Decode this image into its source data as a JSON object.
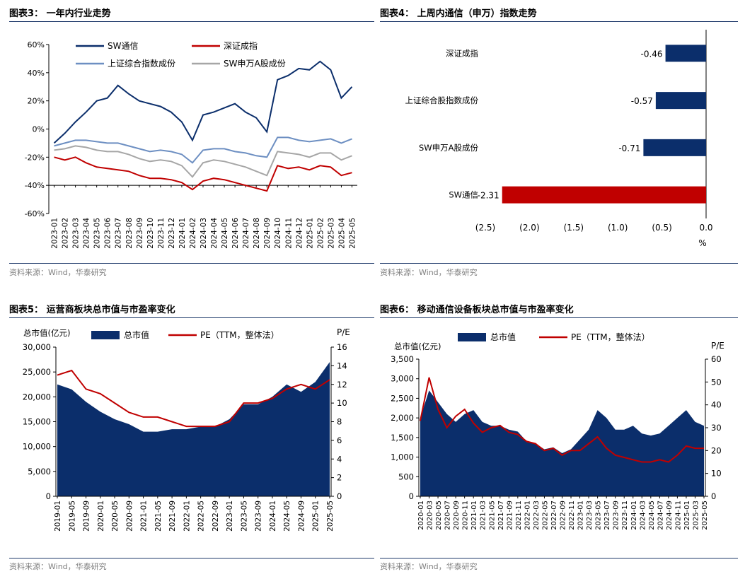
{
  "panels": [
    {
      "title": "图表3： 一年内行业走势",
      "source": "资料来源：Wind，华泰研究"
    },
    {
      "title": "图表4： 上周内通信（申万）指数走势",
      "source": "资料来源：Wind，华泰研究"
    },
    {
      "title": "图表5： 运营商板块总市值与市盈率变化",
      "source": "资料来源：Wind，华泰研究"
    },
    {
      "title": "图表6： 移动通信设备板块总市值与市盈率变化",
      "source": "资料来源：Wind，华泰研究"
    }
  ],
  "colors": {
    "navy": "#0b2e6b",
    "red": "#c00000",
    "lightblue": "#6d8fc2",
    "gray": "#a6a6a6",
    "rule": "#1f3a6b"
  },
  "chart_data": [
    {
      "type": "line",
      "x": [
        "2023-01",
        "2023-02",
        "2023-03",
        "2023-04",
        "2023-05",
        "2023-06",
        "2023-07",
        "2023-08",
        "2023-09",
        "2023-10",
        "2023-11",
        "2023-12",
        "2024-01",
        "2024-02",
        "2024-03",
        "2024-04",
        "2024-05",
        "2024-06",
        "2024-07",
        "2024-08",
        "2024-09",
        "2024-10",
        "2024-11",
        "2024-12",
        "2025-01",
        "2025-02",
        "2025-03",
        "2025-04",
        "2025-05"
      ],
      "ylim": [
        -60,
        60
      ],
      "yticks": [
        "60%",
        "40%",
        "20%",
        "0%",
        "-20%",
        "-40%",
        "-60%"
      ],
      "legend": "top",
      "series": [
        {
          "name": "SW通信",
          "color": "#0b2e6b",
          "values": [
            -10,
            -3,
            5,
            12,
            20,
            22,
            31,
            25,
            20,
            18,
            16,
            12,
            5,
            -8,
            10,
            12,
            15,
            18,
            12,
            8,
            -2,
            35,
            38,
            43,
            42,
            48,
            42,
            22,
            30
          ]
        },
        {
          "name": "深证成指",
          "color": "#c00000",
          "values": [
            -20,
            -22,
            -20,
            -24,
            -27,
            -28,
            -29,
            -30,
            -33,
            -35,
            -35,
            -36,
            -38,
            -43,
            -37,
            -35,
            -36,
            -38,
            -40,
            -42,
            -44,
            -26,
            -28,
            -27,
            -29,
            -26,
            -27,
            -33,
            -31
          ]
        },
        {
          "name": "上证综合指数成份",
          "color": "#6d8fc2",
          "values": [
            -12,
            -10,
            -8,
            -8,
            -9,
            -10,
            -10,
            -12,
            -14,
            -16,
            -15,
            -16,
            -18,
            -24,
            -15,
            -14,
            -14,
            -16,
            -17,
            -19,
            -20,
            -6,
            -6,
            -8,
            -9,
            -8,
            -7,
            -10,
            -7
          ]
        },
        {
          "name": "SW申万A股成份",
          "color": "#a6a6a6",
          "values": [
            -15,
            -14,
            -12,
            -13,
            -15,
            -16,
            -16,
            -18,
            -21,
            -23,
            -22,
            -23,
            -26,
            -34,
            -24,
            -22,
            -23,
            -25,
            -27,
            -30,
            -33,
            -16,
            -17,
            -18,
            -20,
            -17,
            -17,
            -22,
            -19
          ]
        }
      ]
    },
    {
      "type": "bar",
      "orientation": "horizontal",
      "categories": [
        "深证成指",
        "上证综合股指数成份",
        "SW申万A股成份",
        "SW通信"
      ],
      "values": [
        -0.46,
        -0.57,
        -0.71,
        -2.31
      ],
      "labels": [
        "-0.46",
        "-0.57",
        "-0.71",
        "-2.31"
      ],
      "bar_colors": [
        "#0b2e6b",
        "#0b2e6b",
        "#0b2e6b",
        "#c00000"
      ],
      "xlim": [
        -2.5,
        0
      ],
      "xticks": [
        "(2.5)",
        "(2.0)",
        "(1.5)",
        "(1.0)",
        "(0.5)",
        "0.0"
      ],
      "xlabel": "%"
    },
    {
      "type": "area",
      "x": [
        "2019-01",
        "2019-05",
        "2019-09",
        "2020-01",
        "2020-05",
        "2020-09",
        "2021-01",
        "2021-05",
        "2021-09",
        "2022-01",
        "2022-05",
        "2022-09",
        "2023-01",
        "2023-05",
        "2023-09",
        "2024-01",
        "2024-05",
        "2024-09",
        "2025-01",
        "2025-05"
      ],
      "ylim": [
        0,
        30000
      ],
      "yticks": [
        "30,000",
        "25,000",
        "20,000",
        "15,000",
        "10,000",
        "5,000",
        "0"
      ],
      "y2lim": [
        0,
        16
      ],
      "y2ticks": [
        "16",
        "14",
        "12",
        "10",
        "8",
        "6",
        "4",
        "2",
        "0"
      ],
      "ylabel": "总市值(亿元)",
      "y2label": "P/E",
      "legend": "top",
      "series": [
        {
          "name": "总市值",
          "color": "#0b2e6b",
          "axis": "left",
          "values": [
            22500,
            21500,
            19000,
            17000,
            15500,
            14500,
            13000,
            13000,
            13500,
            13500,
            14000,
            14000,
            15500,
            18500,
            18500,
            20000,
            22500,
            21000,
            23000,
            27000
          ]
        },
        {
          "name": "PE（TTM，整体法）",
          "color": "#c00000",
          "axis": "right",
          "values": [
            13.0,
            13.5,
            11.5,
            11.0,
            10.0,
            9.0,
            8.5,
            8.5,
            8.0,
            7.5,
            7.5,
            7.5,
            8.0,
            10.0,
            10.0,
            10.5,
            11.5,
            12.0,
            11.5,
            12.5
          ]
        }
      ]
    },
    {
      "type": "area",
      "x": [
        "2020-01",
        "2020-03",
        "2020-05",
        "2020-07",
        "2020-09",
        "2020-11",
        "2021-01",
        "2021-03",
        "2021-05",
        "2021-07",
        "2021-09",
        "2021-11",
        "2022-01",
        "2022-03",
        "2022-05",
        "2022-07",
        "2022-09",
        "2022-11",
        "2023-01",
        "2023-03",
        "2023-05",
        "2023-07",
        "2023-09",
        "2023-11",
        "2024-01",
        "2024-03",
        "2024-05",
        "2024-07",
        "2024-09",
        "2024-11",
        "2025-01",
        "2025-03",
        "2025-05"
      ],
      "ylim": [
        0,
        3500
      ],
      "yticks": [
        "3,500",
        "3,000",
        "2,500",
        "2,000",
        "1,500",
        "1,000",
        "500",
        "0"
      ],
      "y2lim": [
        0,
        60
      ],
      "y2ticks": [
        "60",
        "50",
        "40",
        "30",
        "20",
        "10",
        "0"
      ],
      "ylabel": "总市值(亿元)",
      "y2label": "P/E",
      "legend": "top",
      "series": [
        {
          "name": "总市值",
          "color": "#0b2e6b",
          "axis": "left",
          "values": [
            2000,
            2700,
            2400,
            2100,
            1900,
            2100,
            2200,
            1900,
            1800,
            1800,
            1700,
            1650,
            1400,
            1350,
            1200,
            1250,
            1100,
            1200,
            1450,
            1700,
            2200,
            2000,
            1700,
            1700,
            1800,
            1600,
            1550,
            1600,
            1800,
            2000,
            2200,
            1900,
            1800
          ]
        },
        {
          "name": "PE（TTM，整体法）",
          "color": "#c00000",
          "axis": "right",
          "values": [
            33,
            52,
            38,
            30,
            35,
            38,
            32,
            28,
            30,
            31,
            28,
            27,
            24,
            23,
            20,
            21,
            18,
            20,
            20,
            23,
            26,
            21,
            18,
            17,
            16,
            15,
            15,
            16,
            15,
            18,
            22,
            21,
            21
          ]
        }
      ]
    }
  ]
}
